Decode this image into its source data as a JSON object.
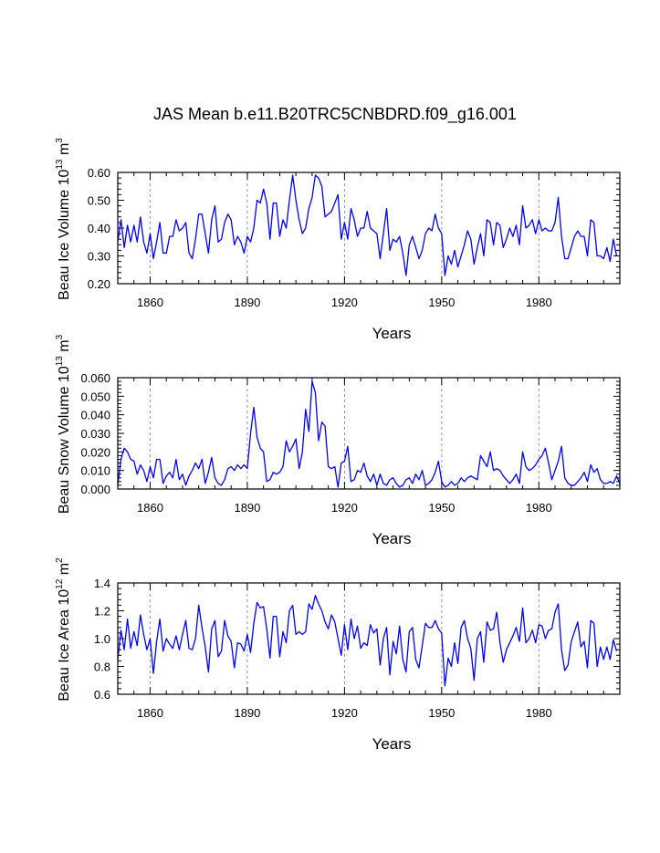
{
  "title": "JAS Mean b.e11.B20TRC5CNBDRD.f09_g16.001",
  "colors": {
    "series": "#0000ff",
    "axis": "#000000",
    "reference_lines": "#808080"
  },
  "chart_data": [
    {
      "type": "line",
      "name": "beau-ice-volume",
      "ylabel": {
        "text": "Beau Ice Volume 10",
        "exponent": "13",
        "unit": " m",
        "unit_exponent": "3"
      },
      "xlabel": "Years",
      "xlim": [
        1850,
        2005
      ],
      "ylim": [
        0.2,
        0.6
      ],
      "xticks": [
        1860,
        1890,
        1920,
        1950,
        1980
      ],
      "yticks": [
        "0.20",
        "0.30",
        "0.40",
        "0.50",
        "0.60"
      ],
      "reference_lines_x": [
        1860,
        1890,
        1920,
        1950,
        1980
      ],
      "x_start": 1850,
      "values": [
        0.35,
        0.43,
        0.33,
        0.41,
        0.35,
        0.41,
        0.35,
        0.44,
        0.35,
        0.31,
        0.38,
        0.29,
        0.35,
        0.42,
        0.31,
        0.31,
        0.37,
        0.37,
        0.43,
        0.39,
        0.4,
        0.42,
        0.31,
        0.29,
        0.36,
        0.45,
        0.45,
        0.38,
        0.31,
        0.43,
        0.48,
        0.35,
        0.36,
        0.42,
        0.45,
        0.43,
        0.34,
        0.37,
        0.35,
        0.31,
        0.37,
        0.35,
        0.4,
        0.5,
        0.49,
        0.54,
        0.49,
        0.36,
        0.49,
        0.49,
        0.37,
        0.43,
        0.4,
        0.5,
        0.59,
        0.5,
        0.43,
        0.38,
        0.4,
        0.47,
        0.51,
        0.59,
        0.58,
        0.55,
        0.44,
        0.45,
        0.46,
        0.49,
        0.52,
        0.36,
        0.42,
        0.36,
        0.47,
        0.43,
        0.37,
        0.4,
        0.4,
        0.46,
        0.4,
        0.39,
        0.38,
        0.29,
        0.38,
        0.47,
        0.32,
        0.36,
        0.35,
        0.37,
        0.31,
        0.23,
        0.34,
        0.37,
        0.33,
        0.29,
        0.32,
        0.38,
        0.4,
        0.39,
        0.45,
        0.4,
        0.38,
        0.23,
        0.3,
        0.27,
        0.32,
        0.26,
        0.3,
        0.34,
        0.39,
        0.36,
        0.27,
        0.33,
        0.38,
        0.3,
        0.43,
        0.42,
        0.34,
        0.42,
        0.41,
        0.33,
        0.36,
        0.4,
        0.37,
        0.41,
        0.34,
        0.48,
        0.4,
        0.41,
        0.43,
        0.38,
        0.43,
        0.39,
        0.4,
        0.39,
        0.39,
        0.42,
        0.51,
        0.37,
        0.29,
        0.29,
        0.33,
        0.37,
        0.39,
        0.37,
        0.37,
        0.3,
        0.43,
        0.42,
        0.3,
        0.3,
        0.29,
        0.33,
        0.28,
        0.36,
        0.3
      ]
    },
    {
      "type": "line",
      "name": "beau-snow-volume",
      "ylabel": {
        "text": "Beau Snow Volume 10",
        "exponent": "13",
        "unit": " m",
        "unit_exponent": "3"
      },
      "xlabel": "Years",
      "xlim": [
        1850,
        2005
      ],
      "ylim": [
        0,
        0.06
      ],
      "xticks": [
        1860,
        1890,
        1920,
        1950,
        1980
      ],
      "yticks": [
        "0.000",
        "0.010",
        "0.020",
        "0.030",
        "0.040",
        "0.050",
        "0.060"
      ],
      "reference_lines_x": [
        1860,
        1890,
        1920,
        1950,
        1980
      ],
      "x_start": 1850,
      "values": [
        0.002,
        0.016,
        0.022,
        0.02,
        0.016,
        0.015,
        0.008,
        0.013,
        0.01,
        0.004,
        0.012,
        0.006,
        0.016,
        0.016,
        0.003,
        0.007,
        0.009,
        0.006,
        0.016,
        0.005,
        0.008,
        0.002,
        0.007,
        0.01,
        0.014,
        0.011,
        0.016,
        0.003,
        0.009,
        0.017,
        0.006,
        0.003,
        0.002,
        0.005,
        0.011,
        0.012,
        0.01,
        0.013,
        0.011,
        0.013,
        0.011,
        0.03,
        0.044,
        0.028,
        0.022,
        0.02,
        0.004,
        0.005,
        0.009,
        0.008,
        0.009,
        0.012,
        0.026,
        0.02,
        0.023,
        0.027,
        0.011,
        0.02,
        0.043,
        0.031,
        0.058,
        0.052,
        0.026,
        0.036,
        0.034,
        0.012,
        0.011,
        0.012,
        0.001,
        0.014,
        0.015,
        0.023,
        0.004,
        0.005,
        0.01,
        0.009,
        0.014,
        0.007,
        0.004,
        0.008,
        0.002,
        0.008,
        0.003,
        0.002,
        0.005,
        0.006,
        0.003,
        0.001,
        0.002,
        0.005,
        0.006,
        0.003,
        0.008,
        0.005,
        0.01,
        0.002,
        0.003,
        0.005,
        0.009,
        0.015,
        0.004,
        0.001,
        0.002,
        0.004,
        0.002,
        0.003,
        0.006,
        0.004,
        0.006,
        0.007,
        0.006,
        0.005,
        0.018,
        0.015,
        0.012,
        0.02,
        0.01,
        0.011,
        0.01,
        0.007,
        0.005,
        0.003,
        0.005,
        0.008,
        0.003,
        0.02,
        0.012,
        0.01,
        0.011,
        0.013,
        0.016,
        0.018,
        0.022,
        0.014,
        0.005,
        0.01,
        0.015,
        0.023,
        0.006,
        0.003,
        0.002,
        0.002,
        0.004,
        0.006,
        0.009,
        0.004,
        0.013,
        0.009,
        0.011,
        0.005,
        0.003,
        0.003,
        0.004,
        0.003,
        0.007,
        0.003
      ]
    },
    {
      "type": "line",
      "name": "beau-ice-area",
      "ylabel": {
        "text": "Beau Ice Area 10",
        "exponent": "12",
        "unit": " m",
        "unit_exponent": "2"
      },
      "xlabel": "Years",
      "xlim": [
        1850,
        2005
      ],
      "ylim": [
        0.6,
        1.4
      ],
      "xticks": [
        1860,
        1890,
        1920,
        1950,
        1980
      ],
      "yticks": [
        "0.6",
        "0.8",
        "1.0",
        "1.2",
        "1.4"
      ],
      "reference_lines_x": [
        1860,
        1890,
        1920,
        1950,
        1980
      ],
      "x_start": 1850,
      "values": [
        0.85,
        1.06,
        0.92,
        1.14,
        0.93,
        1.05,
        0.95,
        1.17,
        1.03,
        0.92,
        1.0,
        0.75,
        0.98,
        1.14,
        0.91,
        1.0,
        0.96,
        0.93,
        1.02,
        0.92,
        1.03,
        1.13,
        0.93,
        0.92,
        1.0,
        1.24,
        1.08,
        0.94,
        0.76,
        1.07,
        1.13,
        0.87,
        0.91,
        1.13,
        1.02,
        0.98,
        0.79,
        0.97,
        0.96,
        0.91,
        1.03,
        0.9,
        1.11,
        1.26,
        1.22,
        1.23,
        1.07,
        0.86,
        1.16,
        1.16,
        0.87,
        1.05,
        0.97,
        1.2,
        1.24,
        1.03,
        1.05,
        1.03,
        1.05,
        1.25,
        1.21,
        1.31,
        1.25,
        1.2,
        1.12,
        1.07,
        1.17,
        1.12,
        1.0,
        0.88,
        1.1,
        0.92,
        1.14,
        1.0,
        1.09,
        0.93,
        0.97,
        0.95,
        1.1,
        1.04,
        1.07,
        0.81,
        1.0,
        1.08,
        0.74,
        0.98,
        0.89,
        1.09,
        0.85,
        0.76,
        1.05,
        1.08,
        0.85,
        0.79,
        0.95,
        1.11,
        1.08,
        1.08,
        1.13,
        1.07,
        1.04,
        0.66,
        0.86,
        0.8,
        0.97,
        0.82,
        1.08,
        1.13,
        1.0,
        0.93,
        0.7,
        1.0,
        1.05,
        0.83,
        1.12,
        1.06,
        1.07,
        1.19,
        0.97,
        0.83,
        0.92,
        0.97,
        1.02,
        1.08,
        0.98,
        1.22,
        0.97,
        1.0,
        1.06,
        0.97,
        1.1,
        1.09,
        1.0,
        1.06,
        1.07,
        1.19,
        1.25,
        0.92,
        0.77,
        0.81,
        0.98,
        1.05,
        1.12,
        0.94,
        0.98,
        0.79,
        1.13,
        1.11,
        0.8,
        0.94,
        0.85,
        0.94,
        0.85,
        0.99,
        0.91
      ]
    }
  ]
}
